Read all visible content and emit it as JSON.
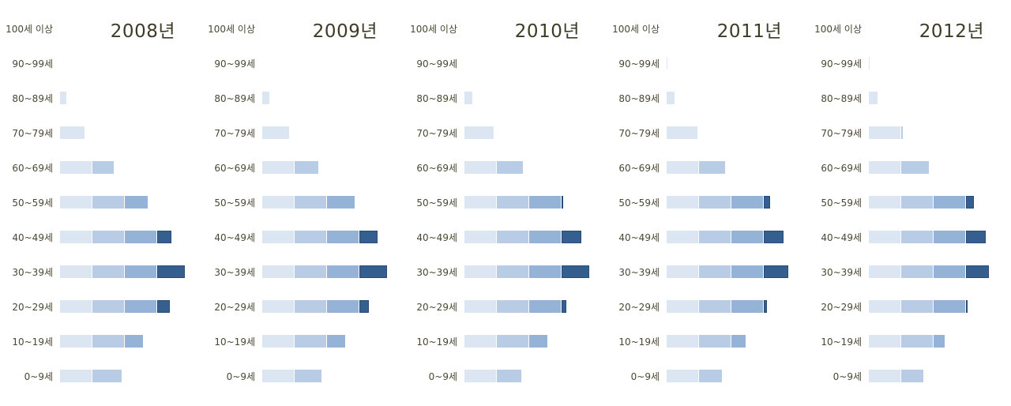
{
  "chart_data": {
    "type": "bar",
    "stacked": true,
    "orientation": "horizontal",
    "segment_unit": 1,
    "segment_colors": [
      "#dce6f2",
      "#b9cce5",
      "#95b3d7",
      "#355f8f"
    ],
    "categories": [
      "100세 이상",
      "90~99세",
      "80~89세",
      "70~79세",
      "60~69세",
      "50~59세",
      "40~49세",
      "30~39세",
      "20~29세",
      "10~19세",
      "0~9세"
    ],
    "panels": [
      {
        "year": "2008년",
        "values": [
          0,
          0,
          0.2,
          0.75,
          1.65,
          2.7,
          3.45,
          3.85,
          3.4,
          2.55,
          1.9
        ]
      },
      {
        "year": "2009년",
        "values": [
          0,
          0,
          0.22,
          0.82,
          1.72,
          2.85,
          3.55,
          3.85,
          3.3,
          2.55,
          1.83
        ]
      },
      {
        "year": "2010년",
        "values": [
          0,
          0,
          0.25,
          0.9,
          1.8,
          3.05,
          3.6,
          3.85,
          3.15,
          2.55,
          1.75
        ]
      },
      {
        "year": "2011년",
        "values": [
          0,
          0.02,
          0.25,
          0.95,
          1.8,
          3.2,
          3.6,
          3.75,
          3.1,
          2.45,
          1.7
        ]
      },
      {
        "year": "2012년",
        "values": [
          0,
          0.02,
          0.28,
          1.05,
          1.85,
          3.25,
          3.6,
          3.7,
          3.05,
          2.35,
          1.68
        ]
      }
    ]
  }
}
